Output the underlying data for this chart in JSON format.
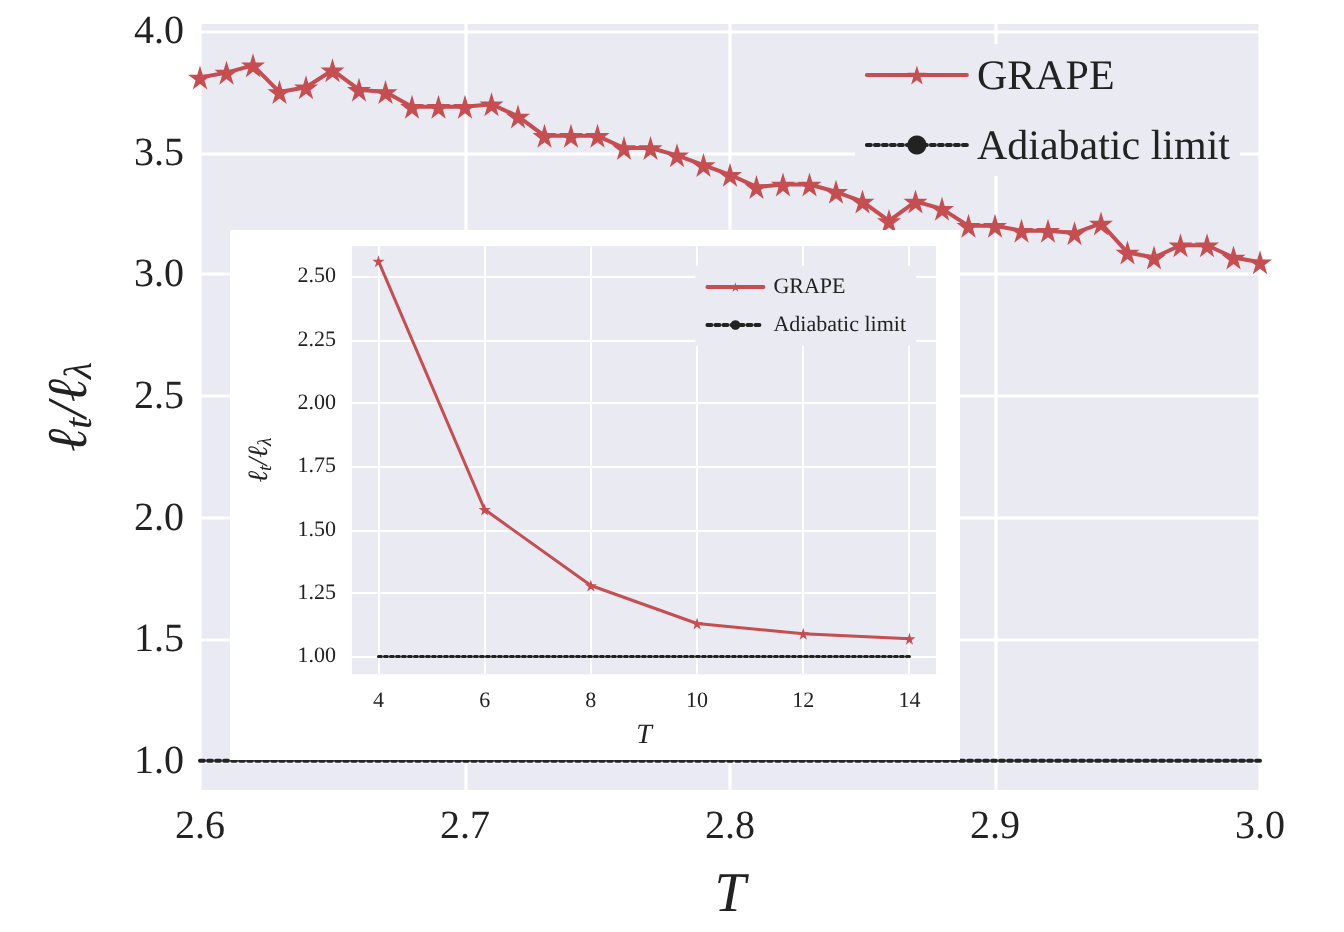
{
  "chart_data": [
    {
      "type": "line",
      "xlabel": "T",
      "ylabel": "ℓ$_{t}$/ℓ$_{λ}$",
      "xlim": [
        2.6,
        3.0
      ],
      "ylim": [
        0.88,
        4.03
      ],
      "xticks": [
        {
          "value": 2.6,
          "label": "2.6"
        },
        {
          "value": 2.7,
          "label": "2.7"
        },
        {
          "value": 2.8,
          "label": "2.8"
        },
        {
          "value": 2.9,
          "label": "2.9"
        },
        {
          "value": 3.0,
          "label": "3.0"
        }
      ],
      "yticks": [
        {
          "value": 1.0,
          "label": "1.0"
        },
        {
          "value": 1.5,
          "label": "1.5"
        },
        {
          "value": 2.0,
          "label": "2.0"
        },
        {
          "value": 2.5,
          "label": "2.5"
        },
        {
          "value": 3.0,
          "label": "3.0"
        },
        {
          "value": 3.5,
          "label": "3.5"
        },
        {
          "value": 4.0,
          "label": "4.0"
        }
      ],
      "grid": true,
      "legend": "top right",
      "series": [
        {
          "name": "GRAPE",
          "color": "#c44e52",
          "marker": "star",
          "line_style": "solid",
          "x": [
            2.6,
            2.61,
            2.62,
            2.63,
            2.64,
            2.65,
            2.66,
            2.67,
            2.68,
            2.69,
            2.7,
            2.71,
            2.72,
            2.73,
            2.74,
            2.75,
            2.76,
            2.77,
            2.78,
            2.79,
            2.8,
            2.81,
            2.82,
            2.83,
            2.84,
            2.85,
            2.86,
            2.87,
            2.88,
            2.89,
            2.9,
            2.91,
            2.92,
            2.93,
            2.94,
            2.95,
            2.96,
            2.97,
            2.98,
            2.99,
            3.0
          ],
          "values": [
            3.81,
            3.83,
            3.86,
            3.75,
            3.77,
            3.84,
            3.76,
            3.75,
            3.69,
            3.69,
            3.69,
            3.7,
            3.65,
            3.57,
            3.57,
            3.57,
            3.52,
            3.52,
            3.49,
            3.45,
            3.41,
            3.36,
            3.37,
            3.37,
            3.34,
            3.3,
            3.22,
            3.3,
            3.27,
            3.2,
            3.2,
            3.18,
            3.18,
            3.17,
            3.21,
            3.09,
            3.07,
            3.12,
            3.12,
            3.07,
            3.05
          ]
        },
        {
          "name": "Adiabatic limit",
          "color": "#222222",
          "marker": "none",
          "line_style": "dotted",
          "x": [
            2.6,
            3.0
          ],
          "values": [
            1.0,
            1.0
          ]
        }
      ]
    },
    {
      "type": "line",
      "xlabel": "T",
      "ylabel": "ℓ$_{t}$/ℓ$_{λ}$",
      "xlim": [
        3.5,
        14.5
      ],
      "ylim": [
        0.93,
        2.62
      ],
      "xticks": [
        4,
        6,
        8,
        10,
        12,
        14
      ],
      "yticks": [
        {
          "value": 1.0,
          "label": "1.00"
        },
        {
          "value": 1.25,
          "label": "1.25"
        },
        {
          "value": 1.5,
          "label": "1.50"
        },
        {
          "value": 1.75,
          "label": "1.75"
        },
        {
          "value": 2.0,
          "label": "2.00"
        },
        {
          "value": 2.25,
          "label": "2.25"
        },
        {
          "value": 2.5,
          "label": "2.50"
        }
      ],
      "grid": true,
      "legend": "top right",
      "series": [
        {
          "name": "GRAPE",
          "color": "#c44e52",
          "marker": "star",
          "line_style": "solid",
          "x": [
            4,
            6,
            8,
            10,
            12,
            14
          ],
          "values": [
            2.56,
            1.58,
            1.28,
            1.13,
            1.09,
            1.07
          ]
        },
        {
          "name": "Adiabatic limit",
          "color": "#222222",
          "marker": "none",
          "line_style": "dotted",
          "x": [
            4,
            14
          ],
          "values": [
            1.0,
            1.0
          ]
        }
      ]
    }
  ]
}
